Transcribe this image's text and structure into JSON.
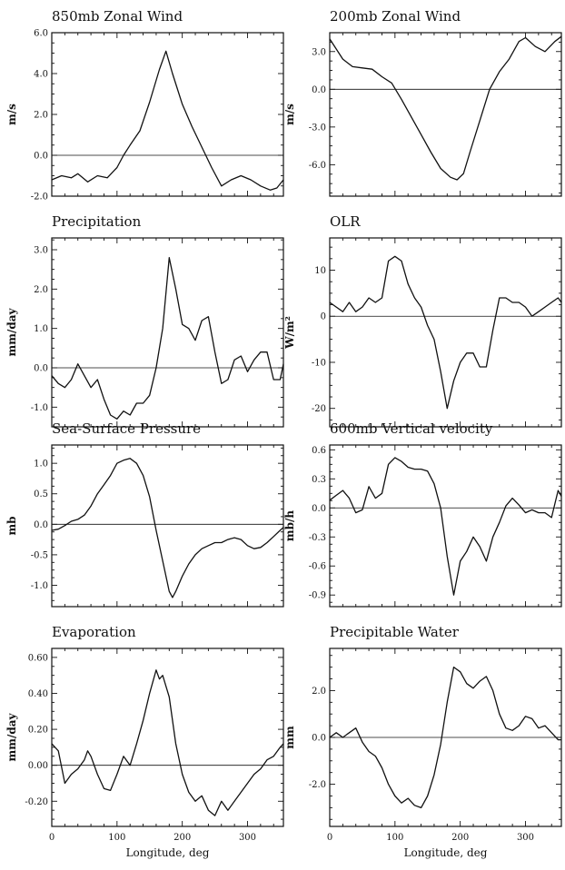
{
  "chart_data": [
    {
      "type": "line",
      "title": "850mb Zonal Wind",
      "xlabel": "",
      "ylabel": "m/s",
      "xlim": [
        0,
        355
      ],
      "ylim": [
        -2.0,
        6.0
      ],
      "xticks": [
        0,
        100,
        200,
        300
      ],
      "xtick_labels": [],
      "yticks": [
        -2.0,
        0.0,
        2.0,
        4.0,
        6.0
      ],
      "ytick_labels": [
        "-2.0",
        "0.0",
        "2.0",
        "4.0",
        "6.0"
      ],
      "zero_line": true,
      "x": [
        0,
        15,
        30,
        40,
        55,
        70,
        85,
        100,
        110,
        120,
        135,
        150,
        165,
        175,
        185,
        200,
        215,
        230,
        245,
        260,
        275,
        290,
        305,
        320,
        335,
        345,
        355
      ],
      "y": [
        -1.2,
        -1.0,
        -1.1,
        -0.9,
        -1.3,
        -1.0,
        -1.1,
        -0.6,
        0.0,
        0.5,
        1.2,
        2.6,
        4.2,
        5.1,
        4.0,
        2.5,
        1.4,
        0.4,
        -0.6,
        -1.5,
        -1.2,
        -1.0,
        -1.2,
        -1.5,
        -1.7,
        -1.6,
        -1.2
      ]
    },
    {
      "type": "line",
      "title": "200mb Zonal Wind",
      "xlabel": "",
      "ylabel": "m/s",
      "xlim": [
        0,
        355
      ],
      "ylim": [
        -8.5,
        4.5
      ],
      "xticks": [
        0,
        100,
        200,
        300
      ],
      "xtick_labels": [],
      "yticks": [
        -6.0,
        -3.0,
        0.0,
        3.0
      ],
      "ytick_labels": [
        "-6.0",
        "-3.0",
        "0.0",
        "3.0"
      ],
      "zero_line": true,
      "x": [
        0,
        10,
        20,
        35,
        50,
        65,
        80,
        95,
        110,
        125,
        140,
        155,
        170,
        185,
        195,
        205,
        215,
        230,
        245,
        260,
        275,
        290,
        300,
        315,
        330,
        345,
        355
      ],
      "y": [
        4.0,
        3.2,
        2.4,
        1.8,
        1.7,
        1.6,
        1.0,
        0.5,
        -0.8,
        -2.2,
        -3.6,
        -5.0,
        -6.3,
        -7.0,
        -7.2,
        -6.7,
        -5.0,
        -2.5,
        0.0,
        1.4,
        2.4,
        3.8,
        4.1,
        3.4,
        3.0,
        3.8,
        4.2
      ]
    },
    {
      "type": "line",
      "title": "Precipitation",
      "xlabel": "",
      "ylabel": "mm/day",
      "xlim": [
        0,
        355
      ],
      "ylim": [
        -1.5,
        3.3
      ],
      "xticks": [
        0,
        100,
        200,
        300
      ],
      "xtick_labels": [],
      "yticks": [
        -1.0,
        0.0,
        1.0,
        2.0,
        3.0
      ],
      "ytick_labels": [
        "-1.0",
        "0.0",
        "1.0",
        "2.0",
        "3.0"
      ],
      "zero_line": true,
      "x": [
        0,
        10,
        20,
        30,
        40,
        50,
        60,
        70,
        80,
        90,
        100,
        110,
        120,
        130,
        140,
        150,
        160,
        170,
        180,
        190,
        200,
        210,
        220,
        230,
        240,
        250,
        260,
        270,
        280,
        290,
        300,
        310,
        320,
        330,
        340,
        350,
        355
      ],
      "y": [
        -0.2,
        -0.4,
        -0.5,
        -0.3,
        0.1,
        -0.2,
        -0.5,
        -0.3,
        -0.8,
        -1.2,
        -1.3,
        -1.1,
        -1.2,
        -0.9,
        -0.9,
        -0.7,
        0.0,
        1.0,
        2.8,
        2.0,
        1.1,
        1.0,
        0.7,
        1.2,
        1.3,
        0.4,
        -0.4,
        -0.3,
        0.2,
        0.3,
        -0.1,
        0.2,
        0.4,
        0.4,
        -0.3,
        -0.3,
        0.1
      ]
    },
    {
      "type": "line",
      "title": "OLR",
      "xlabel": "",
      "ylabel": "W/m²",
      "xlim": [
        0,
        355
      ],
      "ylim": [
        -24,
        17
      ],
      "xticks": [
        0,
        100,
        200,
        300
      ],
      "xtick_labels": [],
      "yticks": [
        -20,
        -10,
        0,
        10
      ],
      "ytick_labels": [
        "-20",
        "-10",
        "0",
        "10"
      ],
      "zero_line": true,
      "x": [
        0,
        10,
        20,
        30,
        40,
        50,
        60,
        70,
        80,
        90,
        100,
        110,
        120,
        130,
        140,
        150,
        160,
        170,
        180,
        190,
        200,
        210,
        220,
        230,
        240,
        250,
        260,
        270,
        280,
        290,
        300,
        310,
        320,
        330,
        340,
        350,
        355
      ],
      "y": [
        3,
        2,
        1,
        3,
        1,
        2,
        4,
        3,
        4,
        12,
        13,
        12,
        7,
        4,
        2,
        -2,
        -5,
        -12,
        -20,
        -14,
        -10,
        -8,
        -8,
        -11,
        -11,
        -3,
        4,
        4,
        3,
        3,
        2,
        0,
        1,
        2,
        3,
        4,
        3
      ]
    },
    {
      "type": "line",
      "title": "Sea-Surface Pressure",
      "xlabel": "",
      "ylabel": "mb",
      "xlim": [
        0,
        355
      ],
      "ylim": [
        -1.35,
        1.3
      ],
      "xticks": [
        0,
        100,
        200,
        300
      ],
      "xtick_labels": [],
      "yticks": [
        -1.0,
        -0.5,
        0.0,
        0.5,
        1.0
      ],
      "ytick_labels": [
        "-1.0",
        "-0.5",
        "0.0",
        "0.5",
        "1.0"
      ],
      "zero_line": true,
      "x": [
        0,
        10,
        20,
        30,
        40,
        50,
        60,
        70,
        80,
        90,
        100,
        110,
        120,
        130,
        140,
        150,
        160,
        170,
        180,
        185,
        190,
        200,
        210,
        220,
        230,
        240,
        250,
        260,
        270,
        280,
        290,
        300,
        310,
        320,
        330,
        340,
        350,
        355
      ],
      "y": [
        -0.1,
        -0.08,
        -0.02,
        0.05,
        0.08,
        0.15,
        0.3,
        0.5,
        0.65,
        0.8,
        1.0,
        1.05,
        1.08,
        1.0,
        0.8,
        0.45,
        -0.1,
        -0.6,
        -1.1,
        -1.2,
        -1.1,
        -0.85,
        -0.65,
        -0.5,
        -0.4,
        -0.35,
        -0.3,
        -0.3,
        -0.25,
        -0.22,
        -0.25,
        -0.35,
        -0.4,
        -0.38,
        -0.3,
        -0.2,
        -0.1,
        -0.05
      ]
    },
    {
      "type": "line",
      "title": "600mb Vertical velocity",
      "xlabel": "",
      "ylabel": "mb/h",
      "xlim": [
        0,
        355
      ],
      "ylim": [
        -1.02,
        0.65
      ],
      "xticks": [
        0,
        100,
        200,
        300
      ],
      "xtick_labels": [],
      "yticks": [
        -0.9,
        -0.6,
        -0.3,
        0.0,
        0.3,
        0.6
      ],
      "ytick_labels": [
        "-0.9",
        "-0.6",
        "-0.3",
        "0.0",
        "0.3",
        "0.6"
      ],
      "zero_line": true,
      "x": [
        0,
        10,
        20,
        30,
        40,
        50,
        60,
        70,
        80,
        90,
        100,
        110,
        120,
        130,
        140,
        150,
        160,
        170,
        180,
        190,
        200,
        210,
        220,
        230,
        240,
        250,
        260,
        270,
        280,
        290,
        300,
        310,
        320,
        330,
        340,
        350,
        355
      ],
      "y": [
        0.08,
        0.13,
        0.18,
        0.1,
        -0.05,
        -0.02,
        0.22,
        0.1,
        0.15,
        0.45,
        0.52,
        0.48,
        0.42,
        0.4,
        0.4,
        0.38,
        0.25,
        0.0,
        -0.5,
        -0.9,
        -0.55,
        -0.45,
        -0.3,
        -0.4,
        -0.55,
        -0.3,
        -0.15,
        0.02,
        0.1,
        0.03,
        -0.05,
        -0.02,
        -0.05,
        -0.05,
        -0.1,
        0.18,
        0.12
      ]
    },
    {
      "type": "line",
      "title": "Evaporation",
      "xlabel": "Longitude, deg",
      "ylabel": "mm/day",
      "xlim": [
        0,
        355
      ],
      "ylim": [
        -0.34,
        0.65
      ],
      "xticks": [
        0,
        100,
        200,
        300
      ],
      "xtick_labels": [
        "0",
        "100",
        "200",
        "300"
      ],
      "yticks": [
        -0.2,
        0.0,
        0.2,
        0.4,
        0.6
      ],
      "ytick_labels": [
        "-0.20",
        "0.00",
        "0.20",
        "0.40",
        "0.60"
      ],
      "zero_line": true,
      "x": [
        0,
        10,
        20,
        30,
        40,
        50,
        55,
        60,
        70,
        80,
        90,
        100,
        110,
        120,
        130,
        140,
        150,
        160,
        165,
        170,
        180,
        190,
        200,
        210,
        220,
        230,
        240,
        250,
        260,
        270,
        280,
        290,
        300,
        310,
        320,
        330,
        340,
        350,
        355
      ],
      "y": [
        0.12,
        0.08,
        -0.1,
        -0.05,
        -0.02,
        0.03,
        0.08,
        0.05,
        -0.05,
        -0.13,
        -0.14,
        -0.05,
        0.05,
        0.0,
        0.12,
        0.25,
        0.4,
        0.53,
        0.48,
        0.5,
        0.38,
        0.12,
        -0.05,
        -0.15,
        -0.2,
        -0.17,
        -0.25,
        -0.28,
        -0.2,
        -0.25,
        -0.2,
        -0.15,
        -0.1,
        -0.05,
        -0.02,
        0.03,
        0.05,
        0.1,
        0.12
      ]
    },
    {
      "type": "line",
      "title": "Precipitable Water",
      "xlabel": "Longitude, deg",
      "ylabel": "mm",
      "xlim": [
        0,
        355
      ],
      "ylim": [
        -3.8,
        3.8
      ],
      "xticks": [
        0,
        100,
        200,
        300
      ],
      "xtick_labels": [
        "0",
        "100",
        "200",
        "300"
      ],
      "yticks": [
        -2.0,
        0.0,
        2.0
      ],
      "ytick_labels": [
        "-2.0",
        "0.0",
        "2.0"
      ],
      "zero_line": true,
      "x": [
        0,
        10,
        20,
        30,
        40,
        50,
        60,
        70,
        80,
        90,
        100,
        110,
        120,
        130,
        140,
        150,
        160,
        170,
        180,
        190,
        200,
        210,
        220,
        230,
        240,
        250,
        260,
        270,
        280,
        290,
        300,
        310,
        320,
        330,
        340,
        350,
        355
      ],
      "y": [
        0.0,
        0.2,
        0.0,
        0.2,
        0.4,
        -0.2,
        -0.6,
        -0.8,
        -1.3,
        -2.0,
        -2.5,
        -2.8,
        -2.6,
        -2.9,
        -3.0,
        -2.5,
        -1.6,
        -0.3,
        1.5,
        3.0,
        2.8,
        2.3,
        2.1,
        2.4,
        2.6,
        2.0,
        1.0,
        0.4,
        0.3,
        0.5,
        0.9,
        0.8,
        0.4,
        0.5,
        0.2,
        -0.1,
        -0.1
      ]
    }
  ]
}
